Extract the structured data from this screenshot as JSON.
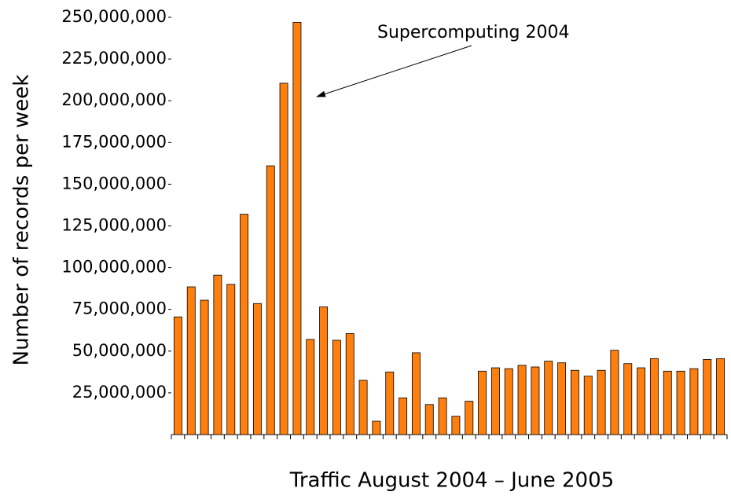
{
  "chart_data": {
    "type": "bar",
    "ylabel": "Number of records per week",
    "xlabel": "Traffic August 2004 – June 2005",
    "annotation": "Supercomputing 2004",
    "color": "#ff7f0e",
    "categories": [
      null,
      null,
      null,
      null,
      null,
      null,
      null,
      null,
      null,
      null,
      null,
      null,
      null,
      null,
      null,
      null,
      null,
      null,
      null,
      null,
      null,
      null,
      null,
      null,
      null,
      null,
      null,
      null,
      null,
      null,
      null,
      null,
      null,
      null,
      null,
      null,
      null,
      null,
      null,
      null,
      null,
      null
    ],
    "values": [
      70500000,
      88500000,
      80500000,
      95500000,
      90000000,
      132000000,
      78500000,
      161000000,
      210500000,
      247000000,
      57000000,
      76500000,
      56500000,
      60500000,
      32500000,
      8000000,
      37500000,
      22000000,
      49000000,
      18000000,
      22000000,
      11000000,
      20000000,
      38000000,
      40000000,
      39500000,
      41500000,
      40500000,
      44000000,
      43000000,
      38500000,
      35000000,
      38500000,
      50500000,
      42500000,
      40000000,
      45500000,
      38000000,
      38000000,
      39500000,
      45000000,
      45500000
    ],
    "ylim": [
      0,
      250000000
    ],
    "yticks": [
      {
        "value": 25000000,
        "label": "25,000,000"
      },
      {
        "value": 50000000,
        "label": "50,000,000"
      },
      {
        "value": 75000000,
        "label": "75,000,000"
      },
      {
        "value": 100000000,
        "label": "100,000,000"
      },
      {
        "value": 125000000,
        "label": "125,000,000"
      },
      {
        "value": 150000000,
        "label": "150,000,000"
      },
      {
        "value": 175000000,
        "label": "175,000,000"
      },
      {
        "value": 200000000,
        "label": "200,000,000"
      },
      {
        "value": 225000000,
        "label": "225,000,000"
      },
      {
        "value": 250000000,
        "label": "250,000,000"
      }
    ],
    "grid": false
  }
}
